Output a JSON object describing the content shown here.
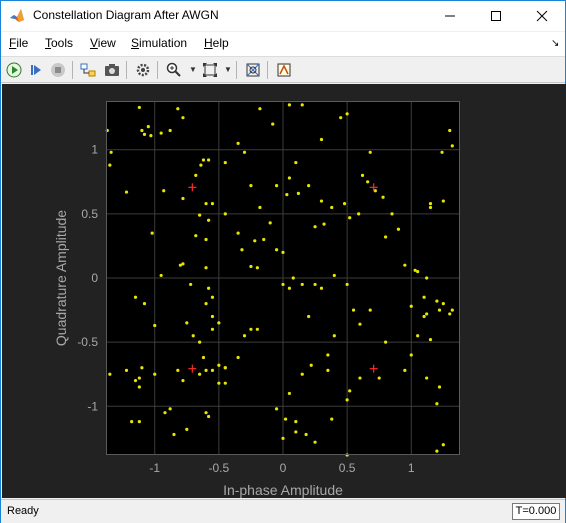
{
  "window": {
    "title": "Constellation Diagram After AWGN"
  },
  "menu": {
    "items": [
      {
        "label": "File"
      },
      {
        "label": "Tools"
      },
      {
        "label": "View"
      },
      {
        "label": "Simulation"
      },
      {
        "label": "Help"
      }
    ]
  },
  "toolbar": {
    "icons": [
      "run-icon",
      "step-forward-icon",
      "stop-icon",
      "highlight-simulink-block-icon",
      "snapshot-icon",
      "settings-icon",
      "zoom-in-icon",
      "zoom-dropdown-icon",
      "scale-axes-icon",
      "scale-dropdown-icon",
      "measurement-icon",
      "style-icon"
    ]
  },
  "status": {
    "text": "Ready",
    "time": "T=0.000"
  },
  "colors": {
    "plot_bg": "#000000",
    "figure_bg": "#222222",
    "points": "#e6e600",
    "reference": "#ff2a2a",
    "grid": "#3c3c3c",
    "axis_text": "#a8a8a8"
  },
  "chart_data": {
    "type": "scatter",
    "xlabel": "In-phase Amplitude",
    "ylabel": "Quadrature Amplitude",
    "xlim": [
      -1.38,
      1.38
    ],
    "ylim": [
      -1.38,
      1.38
    ],
    "xticks": [
      -1,
      -0.5,
      0,
      0.5,
      1
    ],
    "yticks": [
      1,
      0.5,
      0,
      -0.5,
      -1
    ],
    "grid": true,
    "reference_points": [
      {
        "x": -0.707,
        "y": 0.707
      },
      {
        "x": 0.707,
        "y": 0.707
      },
      {
        "x": -0.707,
        "y": -0.707
      },
      {
        "x": 0.707,
        "y": -0.707
      }
    ],
    "points": [
      [
        -1.37,
        1.15
      ],
      [
        -1.35,
        0.88
      ],
      [
        -1.34,
        0.98
      ],
      [
        -1.22,
        0.67
      ],
      [
        -1.12,
        1.33
      ],
      [
        -1.1,
        1.15
      ],
      [
        -1.08,
        1.12
      ],
      [
        -1.05,
        1.18
      ],
      [
        -1.03,
        1.11
      ],
      [
        -1.02,
        0.35
      ],
      [
        -1.0,
        -0.37
      ],
      [
        -0.95,
        1.13
      ],
      [
        -0.88,
        1.15
      ],
      [
        -0.82,
        1.32
      ],
      [
        -0.78,
        1.25
      ],
      [
        -0.93,
        0.68
      ],
      [
        -0.78,
        0.62
      ],
      [
        -0.68,
        0.8
      ],
      [
        -0.64,
        0.88
      ],
      [
        -0.58,
        0.92
      ],
      [
        -0.45,
        0.9
      ],
      [
        -0.35,
        1.05
      ],
      [
        -0.3,
        0.98
      ],
      [
        -0.6,
        0.58
      ],
      [
        -0.55,
        0.58
      ],
      [
        -0.58,
        0.45
      ],
      [
        -0.65,
        0.49
      ],
      [
        -0.68,
        0.33
      ],
      [
        -0.6,
        0.3
      ],
      [
        -0.45,
        0.5
      ],
      [
        -0.35,
        0.35
      ],
      [
        -0.32,
        0.22
      ],
      [
        -0.22,
        0.29
      ],
      [
        -0.25,
        0.09
      ],
      [
        -0.2,
        0.08
      ],
      [
        -0.05,
        0.22
      ],
      [
        -0.18,
        0.55
      ],
      [
        -0.1,
        0.43
      ],
      [
        -0.25,
        0.72
      ],
      [
        -0.05,
        0.72
      ],
      [
        0.05,
        0.78
      ],
      [
        0.03,
        0.65
      ],
      [
        0.12,
        0.66
      ],
      [
        0.1,
        0.9
      ],
      [
        0.2,
        0.72
      ],
      [
        0.3,
        0.6
      ],
      [
        0.38,
        0.55
      ],
      [
        0.32,
        0.42
      ],
      [
        0.25,
        0.4
      ],
      [
        0.48,
        0.58
      ],
      [
        0.52,
        0.47
      ],
      [
        0.59,
        0.5
      ],
      [
        0.66,
        0.75
      ],
      [
        0.72,
        0.68
      ],
      [
        0.62,
        0.8
      ],
      [
        0.68,
        0.98
      ],
      [
        0.78,
        0.63
      ],
      [
        0.85,
        0.5
      ],
      [
        0.9,
        0.38
      ],
      [
        0.8,
        0.32
      ],
      [
        0.95,
        0.1
      ],
      [
        1.0,
        -0.22
      ],
      [
        1.03,
        0.06
      ],
      [
        1.05,
        0.05
      ],
      [
        1.12,
        0.0
      ],
      [
        1.15,
        0.58
      ],
      [
        1.15,
        0.55
      ],
      [
        1.25,
        0.6
      ],
      [
        1.24,
        0.98
      ],
      [
        1.32,
        1.03
      ],
      [
        1.3,
        1.15
      ],
      [
        1.25,
        -0.2
      ],
      [
        1.1,
        -0.15
      ],
      [
        1.1,
        -0.3
      ],
      [
        1.12,
        -0.28
      ],
      [
        1.22,
        -0.25
      ],
      [
        1.2,
        -0.18
      ],
      [
        1.15,
        -0.48
      ],
      [
        1.3,
        -0.28
      ],
      [
        1.32,
        -0.25
      ],
      [
        1.05,
        -0.45
      ],
      [
        1.0,
        -0.6
      ],
      [
        0.95,
        -0.72
      ],
      [
        1.12,
        -0.78
      ],
      [
        1.22,
        -0.85
      ],
      [
        1.2,
        -0.98
      ],
      [
        1.25,
        -1.3
      ],
      [
        1.2,
        -1.35
      ],
      [
        0.5,
        1.28
      ],
      [
        0.45,
        1.25
      ],
      [
        0.3,
        1.08
      ],
      [
        0.15,
        1.35
      ],
      [
        0.05,
        1.35
      ],
      [
        -0.08,
        1.2
      ],
      [
        -0.18,
        1.32
      ],
      [
        0.0,
        0.2
      ],
      [
        0.08,
        0.0
      ],
      [
        0.15,
        -0.05
      ],
      [
        0.25,
        -0.05
      ],
      [
        0.3,
        -0.08
      ],
      [
        0.4,
        0.02
      ],
      [
        0.5,
        -0.05
      ],
      [
        0.55,
        -0.25
      ],
      [
        0.6,
        -0.36
      ],
      [
        0.68,
        -0.25
      ],
      [
        0.4,
        -0.45
      ],
      [
        0.35,
        -0.6
      ],
      [
        0.22,
        -0.68
      ],
      [
        0.15,
        -0.75
      ],
      [
        0.05,
        -0.9
      ],
      [
        -0.05,
        -1.02
      ],
      [
        0.02,
        -1.1
      ],
      [
        0.1,
        -1.12
      ],
      [
        0.18,
        -1.22
      ],
      [
        0.25,
        -1.28
      ],
      [
        0.1,
        -1.2
      ],
      [
        0.0,
        -1.25
      ],
      [
        0.38,
        -1.1
      ],
      [
        0.5,
        -0.95
      ],
      [
        0.52,
        -0.88
      ],
      [
        0.6,
        -0.78
      ],
      [
        0.75,
        -0.78
      ],
      [
        0.8,
        -0.5
      ],
      [
        0.5,
        -1.38
      ],
      [
        -0.2,
        -0.4
      ],
      [
        -0.35,
        -0.62
      ],
      [
        -0.45,
        -0.7
      ],
      [
        -0.5,
        -0.82
      ],
      [
        -0.45,
        -0.82
      ],
      [
        -0.55,
        -0.72
      ],
      [
        -0.62,
        -0.62
      ],
      [
        -0.65,
        -0.5
      ],
      [
        -0.7,
        -0.45
      ],
      [
        -0.75,
        -0.35
      ],
      [
        -0.55,
        -0.4
      ],
      [
        -0.5,
        -0.68
      ],
      [
        -0.45,
        -0.7
      ],
      [
        -0.6,
        -0.72
      ],
      [
        -0.65,
        -0.75
      ],
      [
        -0.78,
        -0.8
      ],
      [
        -0.82,
        -0.72
      ],
      [
        -0.88,
        -1.02
      ],
      [
        -0.92,
        -1.05
      ],
      [
        -0.85,
        -1.22
      ],
      [
        -0.75,
        -1.18
      ],
      [
        -0.6,
        -1.05
      ],
      [
        -0.58,
        -1.08
      ],
      [
        -1.35,
        -0.75
      ],
      [
        -1.22,
        -0.72
      ],
      [
        -1.15,
        -0.8
      ],
      [
        -1.12,
        -0.85
      ],
      [
        -1.12,
        -0.78
      ],
      [
        -1.12,
        -1.12
      ],
      [
        -1.18,
        -1.12
      ],
      [
        -1.0,
        -0.75
      ],
      [
        -1.1,
        -0.7
      ],
      [
        -1.15,
        -0.15
      ],
      [
        -1.08,
        -0.2
      ],
      [
        -0.95,
        0.02
      ],
      [
        -0.8,
        0.1
      ],
      [
        -0.78,
        0.11
      ],
      [
        -0.6,
        0.08
      ],
      [
        -0.72,
        -0.05
      ],
      [
        -0.55,
        -0.3
      ],
      [
        -0.5,
        -0.35
      ],
      [
        0.35,
        -0.72
      ],
      [
        -0.62,
        0.92
      ],
      [
        -0.55,
        -0.15
      ],
      [
        -0.58,
        -0.08
      ],
      [
        -0.6,
        -0.2
      ],
      [
        -0.25,
        -0.4
      ],
      [
        -0.3,
        -0.45
      ],
      [
        0.2,
        -0.3
      ],
      [
        -0.15,
        0.3
      ],
      [
        0.0,
        -0.05
      ],
      [
        0.05,
        -0.08
      ]
    ]
  }
}
